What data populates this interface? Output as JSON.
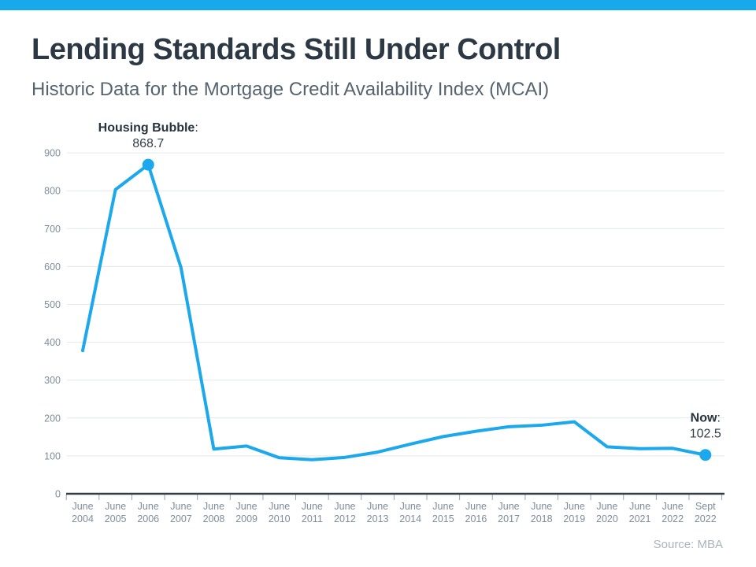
{
  "accent_color": "#18A8EC",
  "header": {
    "title": "Lending Standards Still Under Control",
    "subtitle": "Historic Data for the Mortgage Credit Availability Index (MCAI)"
  },
  "footer": {
    "source": "Source: MBA"
  },
  "chart_data": {
    "type": "line",
    "series_name": "Mortgage Credit Availability Index (MCAI)",
    "categories": [
      "June 2004",
      "June 2005",
      "June 2006",
      "June 2007",
      "June 2008",
      "June 2009",
      "June 2010",
      "June 2011",
      "June 2012",
      "June 2013",
      "June 2014",
      "June 2015",
      "June 2016",
      "June 2017",
      "June 2018",
      "June 2019",
      "June 2020",
      "June 2021",
      "June 2022",
      "Sept 2022"
    ],
    "values": [
      378,
      803,
      868.7,
      597,
      118,
      126,
      95,
      90,
      96,
      110,
      131,
      151,
      165,
      177,
      181,
      190,
      124,
      119,
      120,
      102.5
    ],
    "ylim": [
      0,
      900
    ],
    "ytick_interval": 100,
    "grid": "horizontal",
    "legend": "none",
    "line_color": "#1BA8EC",
    "marker_color": "#1BA8EC",
    "grid_color": "#E4E7EA",
    "axis_line_color": "#333F48",
    "axis_label_color": "#7E8C9C",
    "annotation_label_color": "#27333D",
    "annotation_value_color": "#333F48",
    "marker_indices": [
      2,
      19
    ],
    "annotations": [
      {
        "index": 2,
        "label": "Housing Bubble",
        "separator": ":",
        "value": "868.7"
      },
      {
        "index": 19,
        "label": "Now",
        "separator": ":",
        "value": "102.5"
      }
    ]
  }
}
